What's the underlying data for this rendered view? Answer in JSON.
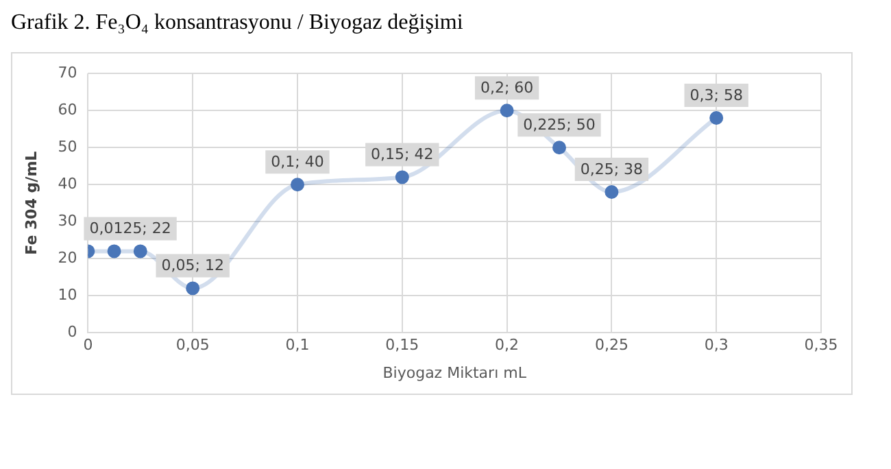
{
  "chart_data": {
    "type": "scatter",
    "title": "Grafik 2. Fe₃O₄ konsantrasyonu / Biyogaz değişimi",
    "xlabel": "Biyogaz Miktarı mL",
    "ylabel": "Fe 304 g/mL",
    "x": [
      0,
      0.0125,
      0.025,
      0.05,
      0.1,
      0.15,
      0.2,
      0.225,
      0.25,
      0.3
    ],
    "series": [
      {
        "type": "line",
        "color": "#4a76b8",
        "values": [
          22,
          22,
          22,
          12,
          40,
          42,
          60,
          50,
          38,
          58
        ],
        "value_labels": [
          null,
          "0,0125; 22",
          null,
          "0,05; 12",
          "0,1; 40",
          "0,15; 42",
          "0,2; 60",
          "0,225; 50",
          "0,25; 38",
          "0,3; 58"
        ]
      }
    ],
    "xlim": [
      0,
      0.35
    ],
    "xticks": [
      {
        "value": 0,
        "label": "0"
      },
      {
        "value": 0.05,
        "label": "0,05"
      },
      {
        "value": 0.1,
        "label": "0,1"
      },
      {
        "value": 0.15,
        "label": "0,15"
      },
      {
        "value": 0.2,
        "label": "0,2"
      },
      {
        "value": 0.25,
        "label": "0,25"
      },
      {
        "value": 0.3,
        "label": "0,3"
      },
      {
        "value": 0.35,
        "label": "0,35"
      }
    ],
    "ylim": [
      0,
      70
    ],
    "yticks": [
      0,
      10,
      20,
      30,
      40,
      50,
      60,
      70
    ],
    "grid": true,
    "marker": "circle",
    "legend": false
  }
}
